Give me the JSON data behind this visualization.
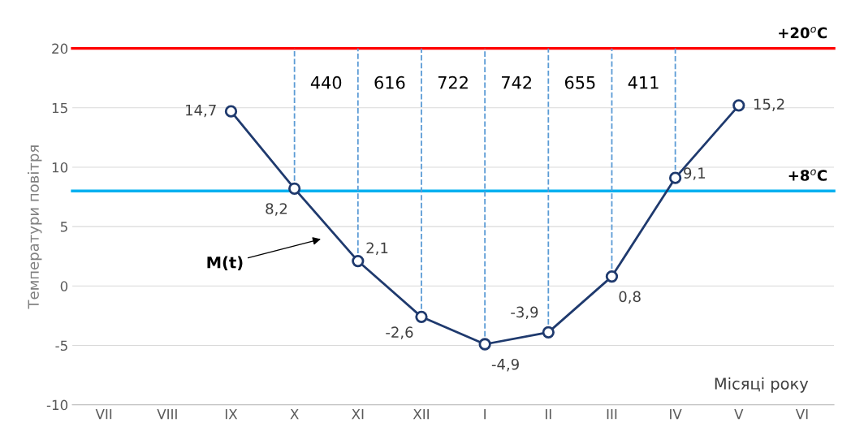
{
  "chart_data": {
    "type": "line",
    "ylabel": "Температури повітря",
    "xlabel": "Місяці року",
    "categories": [
      "VII",
      "VIII",
      "IX",
      "X",
      "XI",
      "XII",
      "I",
      "II",
      "III",
      "IV",
      "V",
      "VI"
    ],
    "series": [
      {
        "color": "#1f3a6e",
        "values": [
          null,
          null,
          14.7,
          8.2,
          2.1,
          -2.6,
          -4.9,
          -3.9,
          0.8,
          9.1,
          15.2,
          null
        ],
        "value_labels": [
          null,
          null,
          "14,7",
          "8,2",
          "2,1",
          "-2,6",
          "-4,9",
          "-3,9",
          "0,8",
          "9,1",
          "15,2",
          null
        ]
      }
    ],
    "marker": "circle",
    "ylim": [
      -10,
      20
    ],
    "yticks": [
      -10,
      -5,
      0,
      5,
      10,
      15,
      20
    ],
    "grid": "y",
    "ref_lines": [
      {
        "axis": "y",
        "value": 20,
        "label": "+20$^{o}$C",
        "color": "#ff0000",
        "line_style": "solid"
      },
      {
        "axis": "y",
        "value": 8,
        "label": "+8$^{o}$C",
        "color": "#00b0f0",
        "line_style": "solid"
      },
      {
        "axis": "x",
        "value": "X",
        "label": null,
        "color": "#5b9bd5",
        "line_style": "dashed"
      },
      {
        "axis": "x",
        "value": "XI",
        "label": null,
        "color": "#5b9bd5",
        "line_style": "dashed"
      },
      {
        "axis": "x",
        "value": "XII",
        "label": null,
        "color": "#5b9bd5",
        "line_style": "dashed"
      },
      {
        "axis": "x",
        "value": "I",
        "label": null,
        "color": "#5b9bd5",
        "line_style": "dashed"
      },
      {
        "axis": "x",
        "value": "II",
        "label": null,
        "color": "#5b9bd5",
        "line_style": "dashed"
      },
      {
        "axis": "x",
        "value": "III",
        "label": null,
        "color": "#5b9bd5",
        "line_style": "dashed"
      },
      {
        "axis": "x",
        "value": "IV",
        "label": null,
        "color": "#5b9bd5",
        "line_style": "dashed"
      }
    ],
    "annotations": [
      "440",
      "616",
      "722",
      "742",
      "655",
      "411",
      "M(t)"
    ]
  }
}
